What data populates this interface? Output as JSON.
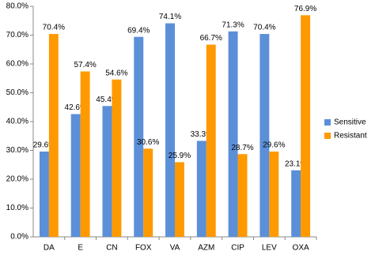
{
  "chart_data": {
    "type": "bar",
    "categories": [
      "DA",
      "E",
      "CN",
      "FOX",
      "VA",
      "AZM",
      "CIP",
      "LEV",
      "OXA"
    ],
    "series": [
      {
        "name": "Sensitive",
        "color": "#5b8fd8",
        "values": [
          29.6,
          42.6,
          45.4,
          69.4,
          74.1,
          33.3,
          71.3,
          70.4,
          23.1
        ],
        "value_labels": [
          "29.6%",
          "42.6%",
          "45.4%",
          "69.4%",
          "74.1%",
          "33.3%",
          "71.3%",
          "70.4%",
          "23.1%"
        ]
      },
      {
        "name": "Resistant",
        "color": "#ff9900",
        "values": [
          70.4,
          57.4,
          54.6,
          30.6,
          25.9,
          66.7,
          28.7,
          29.6,
          76.9
        ],
        "value_labels": [
          "70.4%",
          "57.4%",
          "54.6%",
          "30.6%",
          "25.9%",
          "66.7%",
          "28.7%",
          "29.6%",
          "76.9%"
        ]
      }
    ],
    "ylim": [
      0,
      80
    ],
    "yticks": [
      {
        "value": 0,
        "label": "0.0%"
      },
      {
        "value": 10,
        "label": "10.0%"
      },
      {
        "value": 20,
        "label": "20.0%"
      },
      {
        "value": 30,
        "label": "30.0%"
      },
      {
        "value": 40,
        "label": "40.0%"
      },
      {
        "value": 50,
        "label": "50.0%"
      },
      {
        "value": 60,
        "label": "60.0%"
      },
      {
        "value": 70,
        "label": "70.0%"
      },
      {
        "value": 80,
        "label": "80.0%"
      }
    ],
    "grid": false,
    "legend": "right"
  }
}
